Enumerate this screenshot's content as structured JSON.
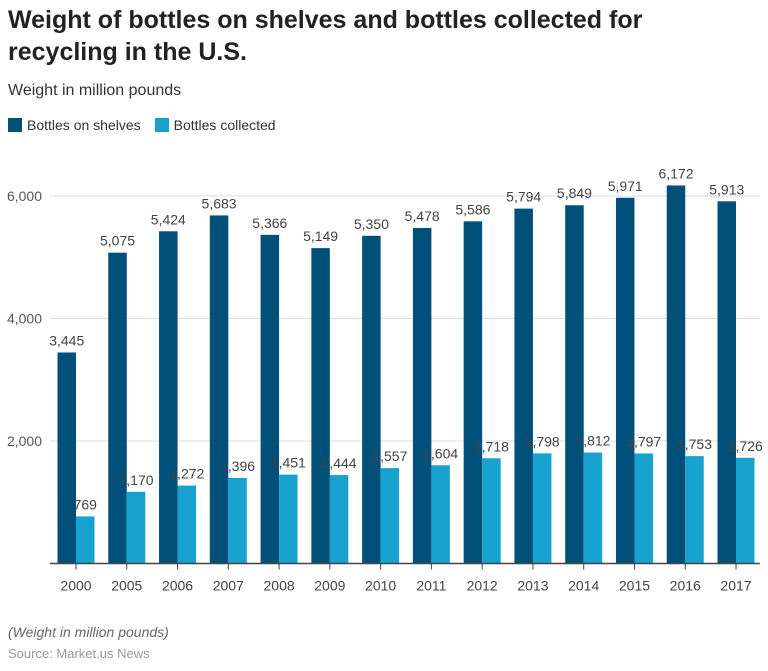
{
  "chart_data": {
    "type": "bar",
    "title": "Weight of bottles on shelves and bottles collected for recycling in the U.S.",
    "subtitle": "Weight in million pounds",
    "categories": [
      "2000",
      "2005",
      "2006",
      "2007",
      "2008",
      "2009",
      "2010",
      "2011",
      "2012",
      "2013",
      "2014",
      "2015",
      "2016",
      "2017"
    ],
    "series": [
      {
        "name": "Bottles on shelves",
        "color": "#00507a",
        "values": [
          3445,
          5075,
          5424,
          5683,
          5366,
          5149,
          5350,
          5478,
          5586,
          5794,
          5849,
          5971,
          6172,
          5913
        ]
      },
      {
        "name": "Bottles collected",
        "color": "#18a2cf",
        "values": [
          769,
          1170,
          1272,
          1396,
          1451,
          1444,
          1557,
          1604,
          1718,
          1798,
          1812,
          1797,
          1753,
          1726
        ]
      }
    ],
    "yticks": [
      "2,000",
      "4,000",
      "6,000"
    ],
    "ytick_values": [
      2000,
      4000,
      6000
    ],
    "ylim": [
      0,
      6500
    ],
    "grid": true,
    "legend": "top-left"
  },
  "note": "(Weight in million pounds)",
  "source": "Source: Market.us News"
}
